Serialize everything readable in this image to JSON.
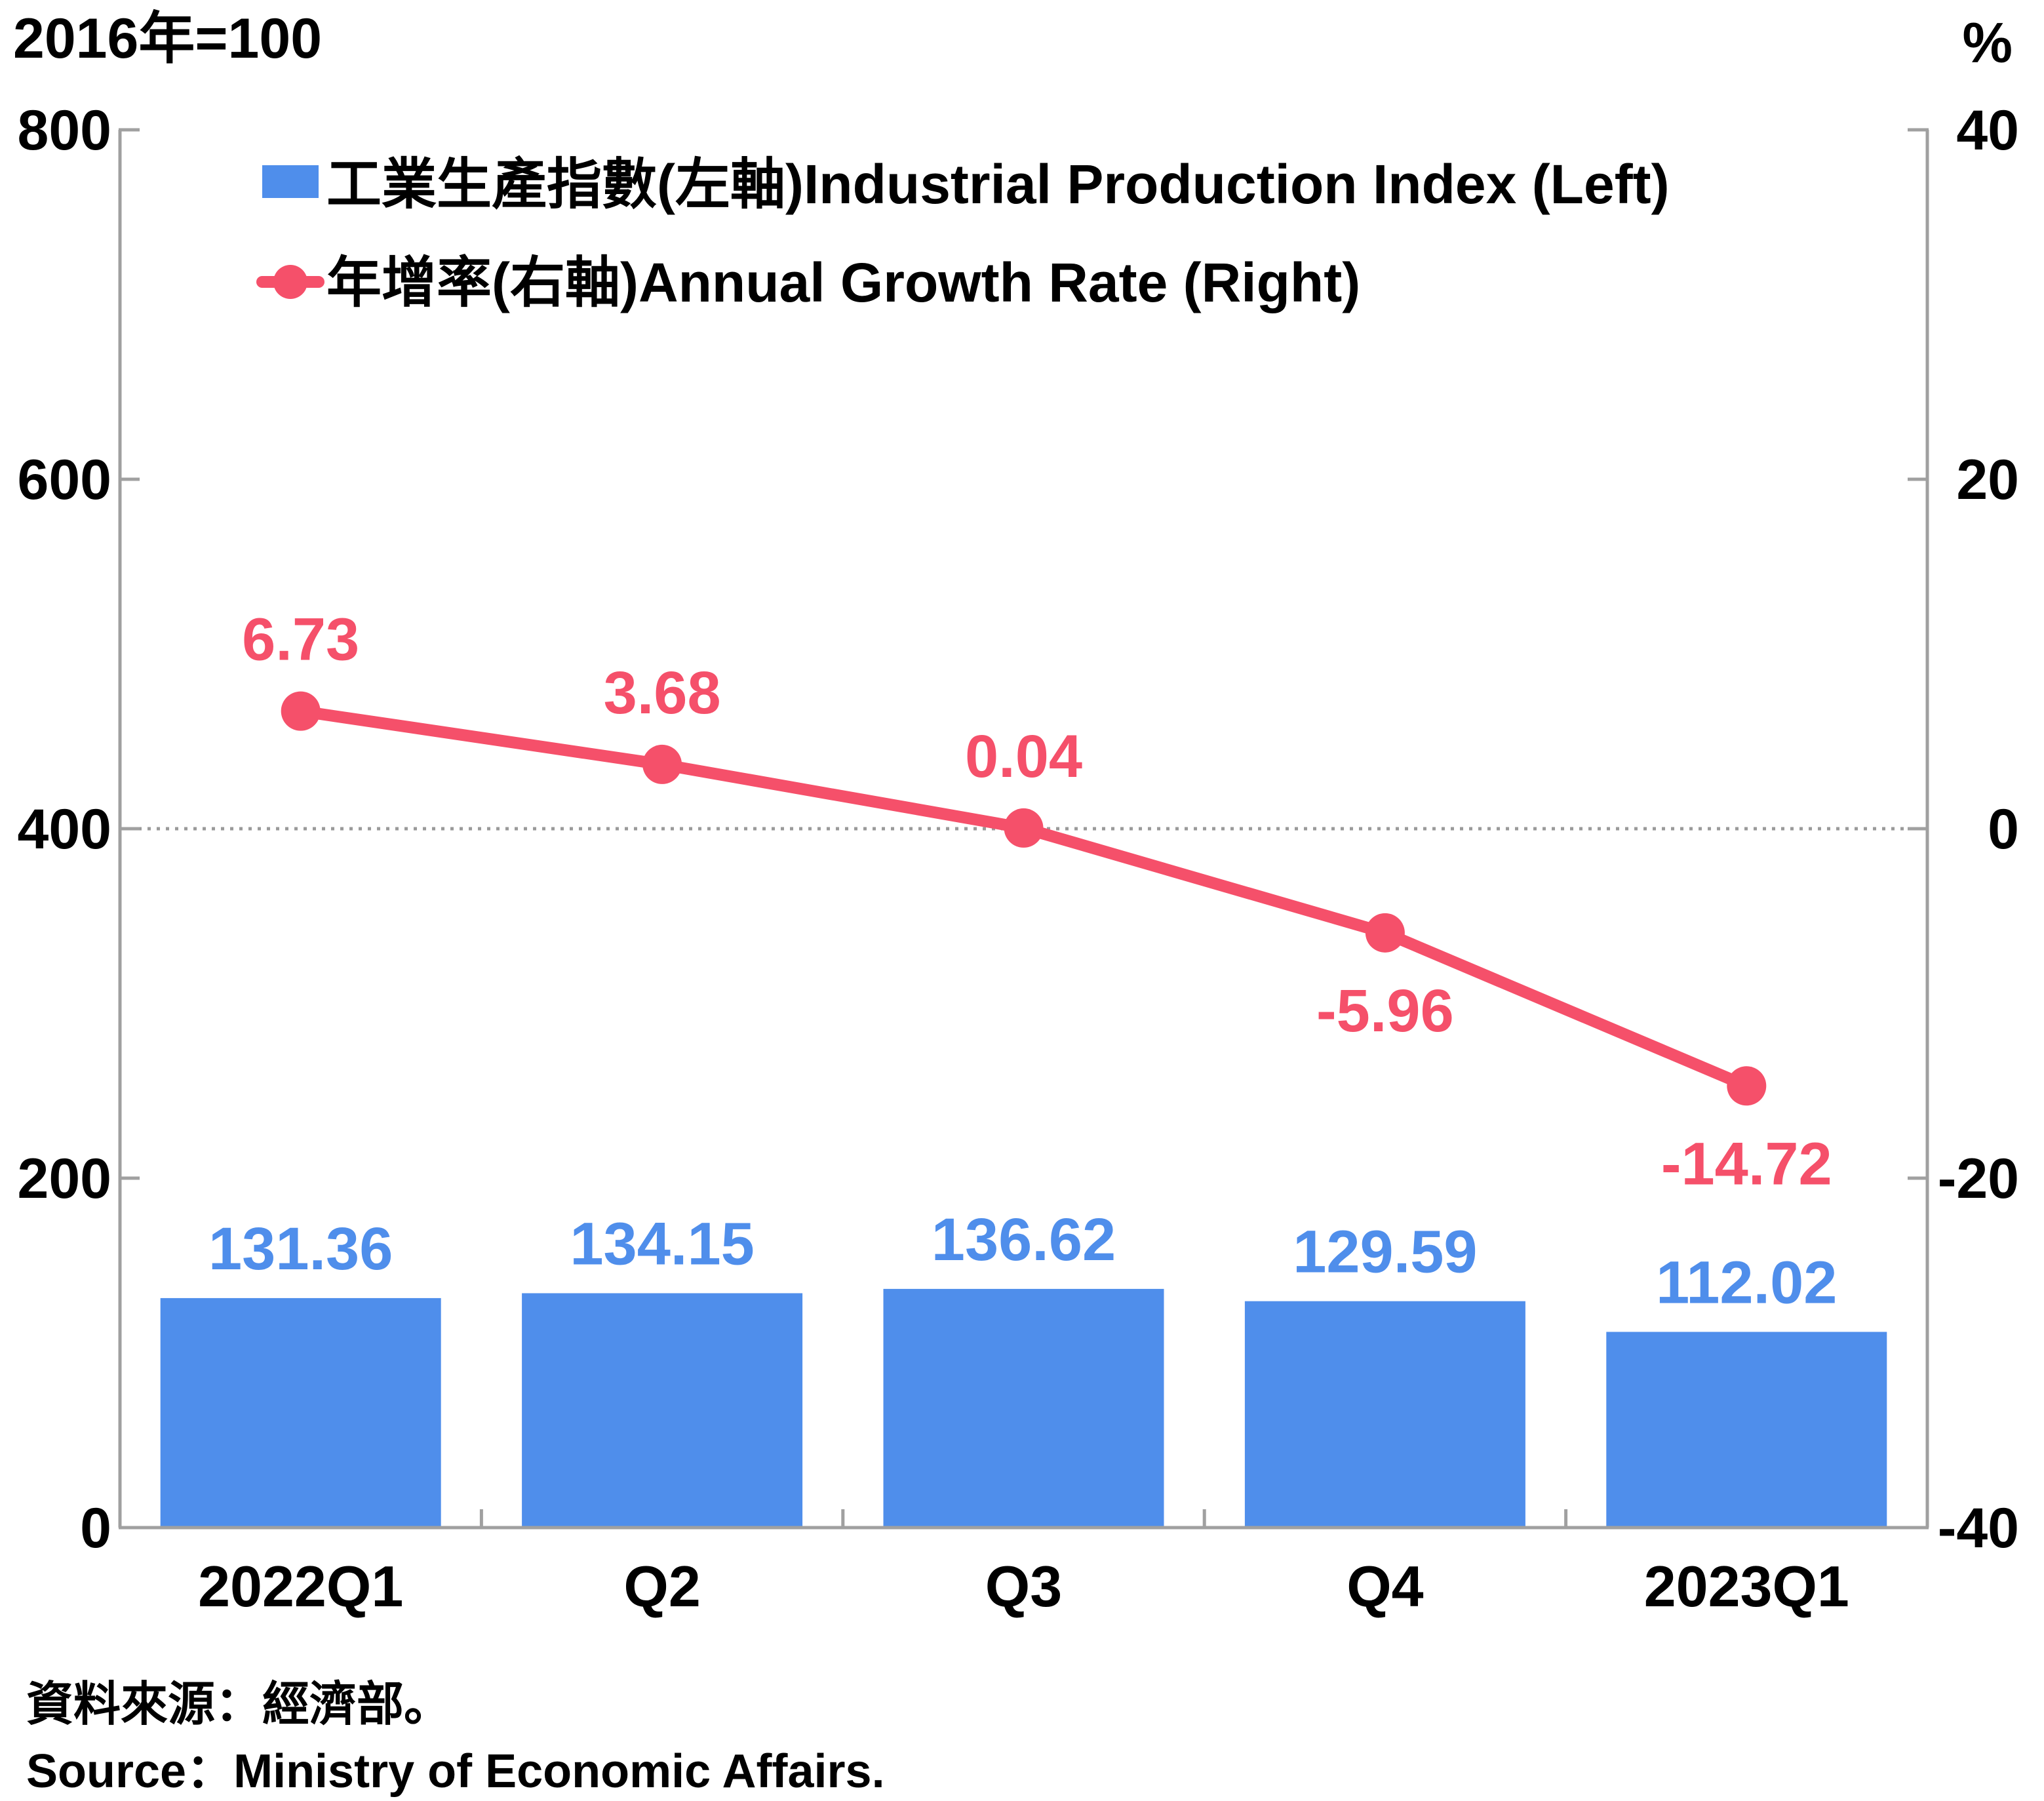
{
  "chart_data": {
    "type": "bar",
    "categories": [
      "2022Q1",
      "Q2",
      "Q3",
      "Q4",
      "2023Q1"
    ],
    "series": [
      {
        "name": "工業生產指數(左軸)Industrial Production Index (Left)",
        "type": "bar",
        "axis": "left",
        "values": [
          131.36,
          134.15,
          136.62,
          129.59,
          112.02
        ],
        "labels": [
          "131.36",
          "134.15",
          "136.62",
          "129.59",
          "112.02"
        ],
        "color": "#4f8eeb"
      },
      {
        "name": "年增率(右軸)Annual Growth Rate (Right)",
        "type": "line",
        "axis": "right",
        "values": [
          6.73,
          3.68,
          0.04,
          -5.96,
          -14.72
        ],
        "labels": [
          "6.73",
          "3.68",
          "0.04",
          "-5.96",
          "-14.72"
        ],
        "color": "#f5506a"
      }
    ],
    "left_axis": {
      "title": "2016年=100",
      "ylim": [
        0,
        800
      ],
      "ticks": [
        "0",
        "200",
        "400",
        "600",
        "800"
      ]
    },
    "right_axis": {
      "title": "%",
      "ylim": [
        -40,
        40
      ],
      "ticks": [
        "-40",
        "-20",
        "0",
        "20",
        "40"
      ]
    },
    "zero_line": "dotted",
    "legend_position": "top-left",
    "axis_color": "#a0a0a0"
  },
  "source": {
    "zh": "資料來源：經濟部。",
    "en": "Source：Ministry of Economic Affairs."
  }
}
